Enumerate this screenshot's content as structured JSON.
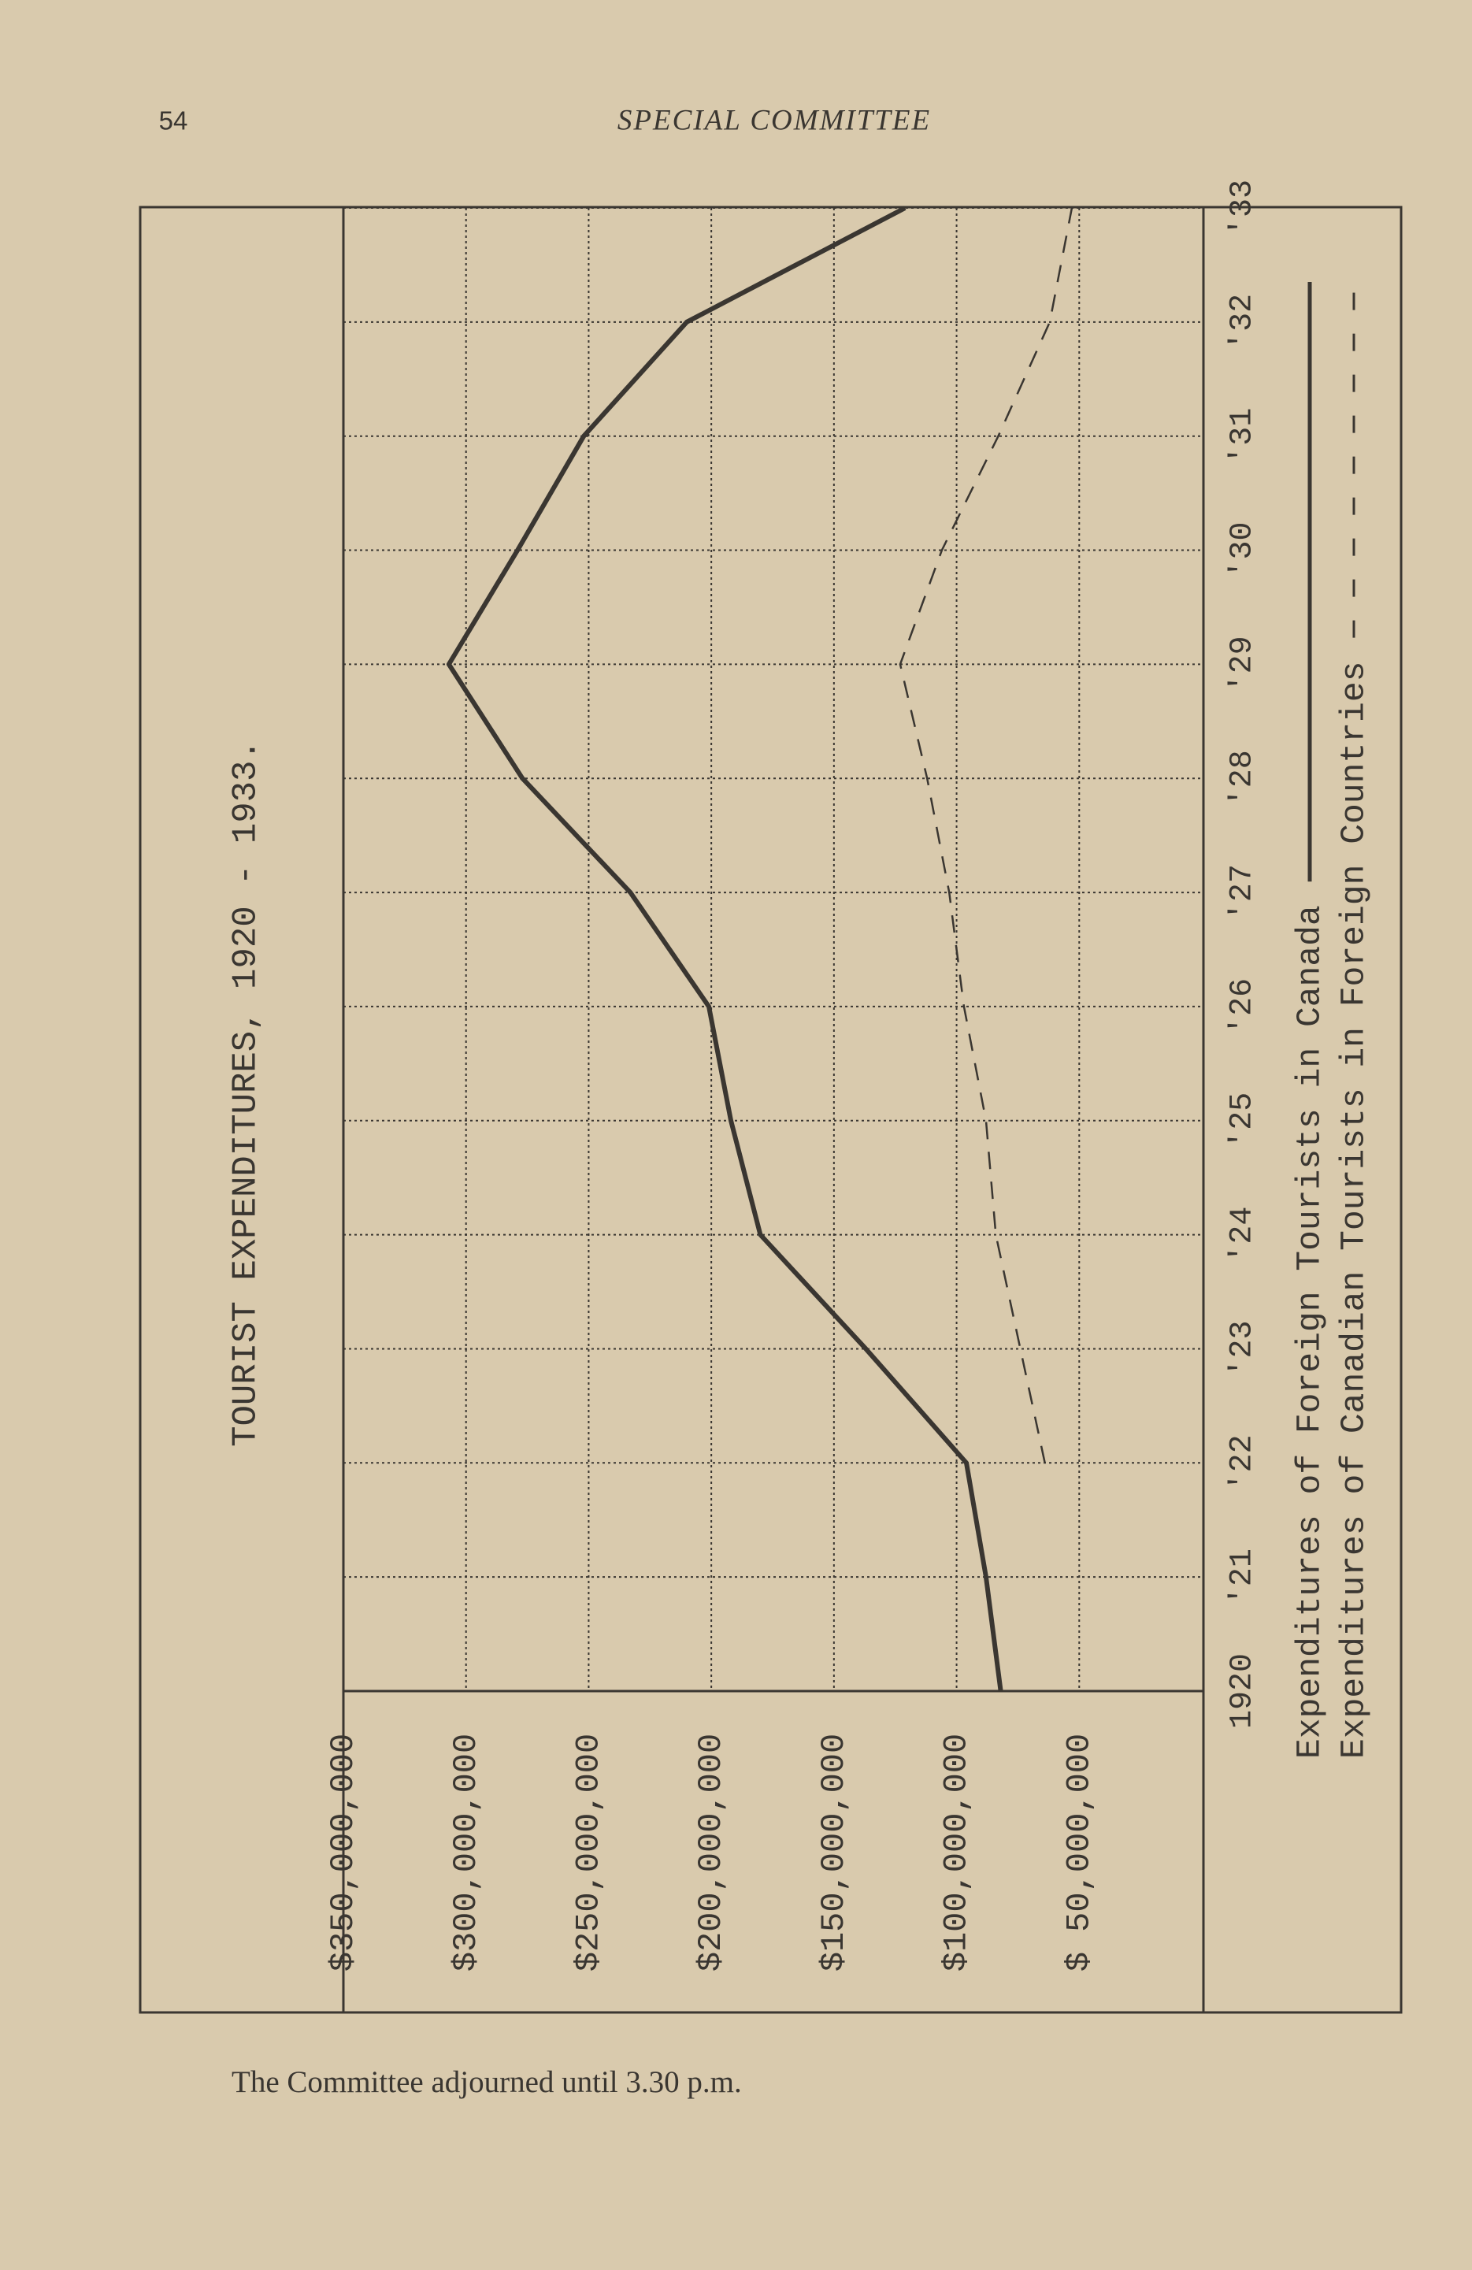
{
  "page": {
    "number": "54",
    "header": "SPECIAL COMMITTEE",
    "footer": "The Committee adjourned until 3.30 p.m."
  },
  "chart_data": {
    "type": "line",
    "title": "TOURIST EXPENDITURES, 1920 - 1933.",
    "x": [
      1920,
      1921,
      1922,
      1923,
      1924,
      1925,
      1926,
      1927,
      1928,
      1929,
      1930,
      1931,
      1932,
      1933
    ],
    "xlim": [
      1920,
      1933
    ],
    "xticks": [
      1920,
      {
        "value": 1921,
        "label": "'21"
      },
      {
        "value": 1922,
        "label": "'22"
      },
      {
        "value": 1923,
        "label": "'23"
      },
      {
        "value": 1924,
        "label": "'24"
      },
      {
        "value": 1925,
        "label": "'25"
      },
      {
        "value": 1926,
        "label": "'26"
      },
      {
        "value": 1927,
        "label": "'27"
      },
      {
        "value": 1928,
        "label": "'28"
      },
      {
        "value": 1929,
        "label": "'29"
      },
      {
        "value": 1930,
        "label": "'30"
      },
      {
        "value": 1931,
        "label": "'31"
      },
      {
        "value": 1932,
        "label": "'32"
      },
      {
        "value": 1933,
        "label": "'33"
      }
    ],
    "ylim": [
      0,
      350000000
    ],
    "yticks": [
      {
        "value": 50000000,
        "label": "$ 50,000,000"
      },
      {
        "value": 100000000,
        "label": "$100,000,000"
      },
      {
        "value": 150000000,
        "label": "$150,000,000"
      },
      {
        "value": 200000000,
        "label": "$200,000,000"
      },
      {
        "value": 250000000,
        "label": "$250,000,000"
      },
      {
        "value": 300000000,
        "label": "$300,000,000"
      },
      {
        "value": 350000000,
        "label": "$350,000,000"
      }
    ],
    "grid": true,
    "series": [
      {
        "name": "Expenditures of Foreign Tourists in Canada",
        "color": "#3a3631",
        "style": "solid",
        "values": [
          82000000,
          88000000,
          96000000,
          137000000,
          180000000,
          192000000,
          201000000,
          233000000,
          277000000,
          307000000,
          279000000,
          252000000,
          210000000,
          121000000
        ]
      },
      {
        "name": "Expenditures of Canadian Tourists in Foreign Countries",
        "color": "#3a3631",
        "style": "dashed",
        "values": [
          null,
          null,
          64000000,
          74000000,
          84000000,
          88000000,
          97000000,
          103000000,
          112000000,
          123000000,
          106000000,
          83000000,
          62000000,
          53000000
        ]
      }
    ]
  }
}
